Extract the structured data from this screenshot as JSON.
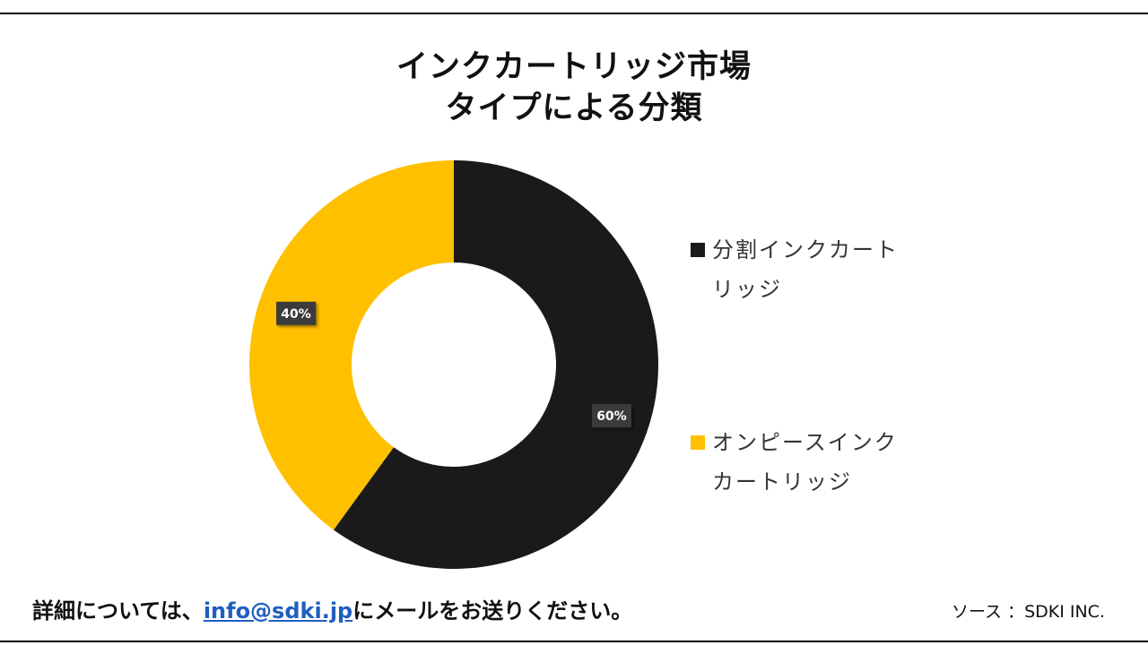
{
  "title_lines": [
    "インクカートリッジ市場",
    "タイプによる分類"
  ],
  "chart_data": {
    "type": "pie",
    "donut": true,
    "categories": [
      "分割インクカートリッジ",
      "オンピースインクカートリッジ"
    ],
    "values": [
      60,
      40
    ],
    "labels": [
      "60%",
      "40%"
    ],
    "colors": [
      "#1a1a1a",
      "#ffc000"
    ],
    "legend_placement": "right"
  },
  "legend": {
    "items": [
      {
        "label": "分割インクカートリッジ",
        "color": "#1a1a1a"
      },
      {
        "label": "オンピースインクカートリッジ",
        "color": "#ffc000"
      }
    ]
  },
  "footer": {
    "contact_prefix": "詳細については、",
    "email": "info@sdki.jp",
    "contact_suffix": "にメールをお送りください。",
    "source": "ソース ：SDKI INC."
  }
}
